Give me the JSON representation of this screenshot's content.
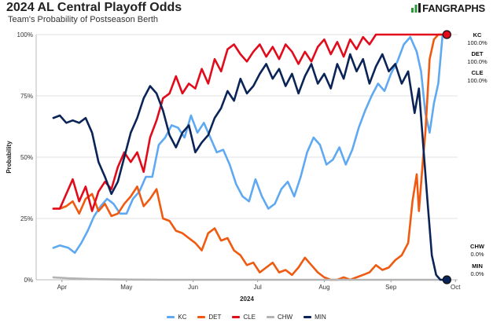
{
  "header": {
    "title": "2024 AL Central Playoff Odds",
    "subtitle": "Team's Probability of Postseason Berth",
    "logo_text": "FANGRAPHS"
  },
  "chart_data": {
    "type": "line",
    "title": "2024 AL Central Playoff Odds",
    "subtitle": "Team's Probability of Postseason Berth",
    "xlabel": "2024",
    "ylabel": "Probability",
    "ylim": [
      0,
      100
    ],
    "xlim": [
      0,
      196
    ],
    "x_units": "days since 2024-03-20",
    "y_ticks": [
      0,
      25,
      50,
      75,
      100
    ],
    "y_tick_labels": [
      "0%",
      "25%",
      "50%",
      "75%",
      "100%"
    ],
    "x_ticks": [
      12,
      42,
      73,
      103,
      134,
      165,
      195
    ],
    "x_tick_labels": [
      "Apr",
      "May",
      "Jun",
      "Jul",
      "Aug",
      "Sep",
      "Oct"
    ],
    "grid": "horizontal",
    "legend_position": "bottom",
    "series": [
      {
        "name": "KC",
        "color": "#5fa9f2",
        "end_label": [
          "KC",
          "100.0%"
        ],
        "points": [
          [
            8,
            13
          ],
          [
            11,
            14
          ],
          [
            15,
            13
          ],
          [
            18,
            11
          ],
          [
            21,
            15
          ],
          [
            24,
            20
          ],
          [
            27,
            26
          ],
          [
            30,
            30
          ],
          [
            33,
            33
          ],
          [
            36,
            31
          ],
          [
            39,
            27
          ],
          [
            42,
            27
          ],
          [
            45,
            33
          ],
          [
            48,
            36
          ],
          [
            51,
            42
          ],
          [
            54,
            42
          ],
          [
            57,
            55
          ],
          [
            60,
            58
          ],
          [
            63,
            63
          ],
          [
            66,
            62
          ],
          [
            69,
            58
          ],
          [
            72,
            67
          ],
          [
            75,
            60
          ],
          [
            78,
            64
          ],
          [
            81,
            58
          ],
          [
            84,
            52
          ],
          [
            87,
            53
          ],
          [
            90,
            47
          ],
          [
            93,
            39
          ],
          [
            96,
            34
          ],
          [
            99,
            32
          ],
          [
            102,
            41
          ],
          [
            105,
            34
          ],
          [
            108,
            29
          ],
          [
            111,
            31
          ],
          [
            114,
            37
          ],
          [
            117,
            40
          ],
          [
            120,
            34
          ],
          [
            123,
            42
          ],
          [
            126,
            52
          ],
          [
            129,
            58
          ],
          [
            132,
            55
          ],
          [
            135,
            47
          ],
          [
            138,
            49
          ],
          [
            141,
            54
          ],
          [
            144,
            47
          ],
          [
            147,
            53
          ],
          [
            150,
            62
          ],
          [
            153,
            69
          ],
          [
            156,
            75
          ],
          [
            159,
            80
          ],
          [
            162,
            77
          ],
          [
            165,
            84
          ],
          [
            168,
            89
          ],
          [
            171,
            96
          ],
          [
            174,
            99
          ],
          [
            177,
            93
          ],
          [
            179,
            85
          ],
          [
            181,
            68
          ],
          [
            183,
            60
          ],
          [
            185,
            72
          ],
          [
            187,
            80
          ],
          [
            189,
            100
          ],
          [
            191,
            100
          ]
        ]
      },
      {
        "name": "DET",
        "color": "#f05a10",
        "end_label": [
          "DET",
          "100.0%"
        ],
        "points": [
          [
            8,
            29
          ],
          [
            11,
            29
          ],
          [
            14,
            30
          ],
          [
            17,
            32
          ],
          [
            20,
            27
          ],
          [
            23,
            33
          ],
          [
            26,
            35
          ],
          [
            29,
            28
          ],
          [
            32,
            31
          ],
          [
            35,
            26
          ],
          [
            38,
            27
          ],
          [
            41,
            31
          ],
          [
            44,
            34
          ],
          [
            47,
            38
          ],
          [
            50,
            30
          ],
          [
            53,
            33
          ],
          [
            56,
            37
          ],
          [
            59,
            25
          ],
          [
            62,
            24
          ],
          [
            65,
            20
          ],
          [
            68,
            19
          ],
          [
            71,
            17
          ],
          [
            74,
            15
          ],
          [
            77,
            12
          ],
          [
            80,
            19
          ],
          [
            83,
            21
          ],
          [
            86,
            16
          ],
          [
            89,
            17
          ],
          [
            92,
            12
          ],
          [
            95,
            10
          ],
          [
            98,
            6
          ],
          [
            101,
            7
          ],
          [
            104,
            3
          ],
          [
            107,
            5
          ],
          [
            110,
            7
          ],
          [
            113,
            3
          ],
          [
            116,
            4
          ],
          [
            119,
            2
          ],
          [
            122,
            5
          ],
          [
            125,
            9
          ],
          [
            128,
            6
          ],
          [
            131,
            3
          ],
          [
            134,
            1
          ],
          [
            137,
            0
          ],
          [
            140,
            0
          ],
          [
            143,
            1
          ],
          [
            146,
            0
          ],
          [
            149,
            1
          ],
          [
            152,
            2
          ],
          [
            155,
            3
          ],
          [
            158,
            6
          ],
          [
            161,
            4
          ],
          [
            164,
            5
          ],
          [
            167,
            8
          ],
          [
            170,
            10
          ],
          [
            173,
            15
          ],
          [
            175,
            32
          ],
          [
            177,
            43
          ],
          [
            178,
            28
          ],
          [
            180,
            50
          ],
          [
            181,
            60
          ],
          [
            183,
            90
          ],
          [
            185,
            98
          ],
          [
            187,
            100
          ],
          [
            191,
            100
          ]
        ]
      },
      {
        "name": "CLE",
        "color": "#e20b1b",
        "end_label": [
          "CLE",
          "100.0%"
        ],
        "points": [
          [
            8,
            29
          ],
          [
            11,
            29
          ],
          [
            14,
            35
          ],
          [
            17,
            41
          ],
          [
            20,
            32
          ],
          [
            23,
            38
          ],
          [
            26,
            28
          ],
          [
            29,
            36
          ],
          [
            32,
            40
          ],
          [
            35,
            37
          ],
          [
            38,
            46
          ],
          [
            41,
            52
          ],
          [
            44,
            48
          ],
          [
            47,
            52
          ],
          [
            50,
            44
          ],
          [
            53,
            58
          ],
          [
            56,
            65
          ],
          [
            59,
            74
          ],
          [
            62,
            76
          ],
          [
            65,
            83
          ],
          [
            68,
            76
          ],
          [
            71,
            80
          ],
          [
            74,
            78
          ],
          [
            77,
            86
          ],
          [
            80,
            80
          ],
          [
            83,
            90
          ],
          [
            86,
            85
          ],
          [
            89,
            94
          ],
          [
            92,
            96
          ],
          [
            95,
            92
          ],
          [
            98,
            89
          ],
          [
            101,
            93
          ],
          [
            104,
            96
          ],
          [
            107,
            91
          ],
          [
            110,
            95
          ],
          [
            113,
            90
          ],
          [
            116,
            96
          ],
          [
            119,
            93
          ],
          [
            122,
            88
          ],
          [
            125,
            93
          ],
          [
            128,
            89
          ],
          [
            131,
            95
          ],
          [
            134,
            98
          ],
          [
            137,
            92
          ],
          [
            140,
            97
          ],
          [
            143,
            91
          ],
          [
            146,
            98
          ],
          [
            149,
            94
          ],
          [
            152,
            99
          ],
          [
            155,
            96
          ],
          [
            158,
            100
          ],
          [
            161,
            100
          ],
          [
            165,
            100
          ],
          [
            175,
            100
          ],
          [
            185,
            100
          ],
          [
            191,
            100
          ]
        ]
      },
      {
        "name": "CHW",
        "color": "#b4b4b4",
        "end_label": [
          "CHW",
          "0.0%"
        ],
        "points": [
          [
            8,
            1
          ],
          [
            15,
            0.6
          ],
          [
            25,
            0.3
          ],
          [
            40,
            0.1
          ],
          [
            60,
            0
          ],
          [
            191,
            0
          ]
        ]
      },
      {
        "name": "MIN",
        "color": "#0b2458",
        "end_label": [
          "MIN",
          "0.0%"
        ],
        "points": [
          [
            8,
            66
          ],
          [
            11,
            67
          ],
          [
            14,
            64
          ],
          [
            17,
            65
          ],
          [
            20,
            64
          ],
          [
            23,
            66
          ],
          [
            26,
            60
          ],
          [
            29,
            48
          ],
          [
            32,
            42
          ],
          [
            35,
            35
          ],
          [
            38,
            40
          ],
          [
            41,
            50
          ],
          [
            44,
            60
          ],
          [
            47,
            66
          ],
          [
            50,
            74
          ],
          [
            53,
            79
          ],
          [
            56,
            76
          ],
          [
            59,
            69
          ],
          [
            62,
            59
          ],
          [
            65,
            54
          ],
          [
            68,
            60
          ],
          [
            71,
            63
          ],
          [
            74,
            52
          ],
          [
            77,
            56
          ],
          [
            80,
            59
          ],
          [
            83,
            66
          ],
          [
            86,
            70
          ],
          [
            89,
            77
          ],
          [
            92,
            73
          ],
          [
            95,
            82
          ],
          [
            98,
            76
          ],
          [
            101,
            79
          ],
          [
            104,
            84
          ],
          [
            107,
            88
          ],
          [
            110,
            82
          ],
          [
            113,
            86
          ],
          [
            116,
            79
          ],
          [
            119,
            84
          ],
          [
            122,
            76
          ],
          [
            125,
            83
          ],
          [
            128,
            88
          ],
          [
            131,
            80
          ],
          [
            134,
            84
          ],
          [
            137,
            78
          ],
          [
            140,
            88
          ],
          [
            143,
            82
          ],
          [
            146,
            92
          ],
          [
            149,
            85
          ],
          [
            152,
            90
          ],
          [
            155,
            80
          ],
          [
            158,
            87
          ],
          [
            161,
            92
          ],
          [
            164,
            85
          ],
          [
            167,
            88
          ],
          [
            170,
            80
          ],
          [
            173,
            85
          ],
          [
            176,
            68
          ],
          [
            178,
            78
          ],
          [
            180,
            55
          ],
          [
            182,
            32
          ],
          [
            184,
            10
          ],
          [
            186,
            2
          ],
          [
            188,
            0
          ],
          [
            191,
            0
          ]
        ]
      }
    ]
  }
}
